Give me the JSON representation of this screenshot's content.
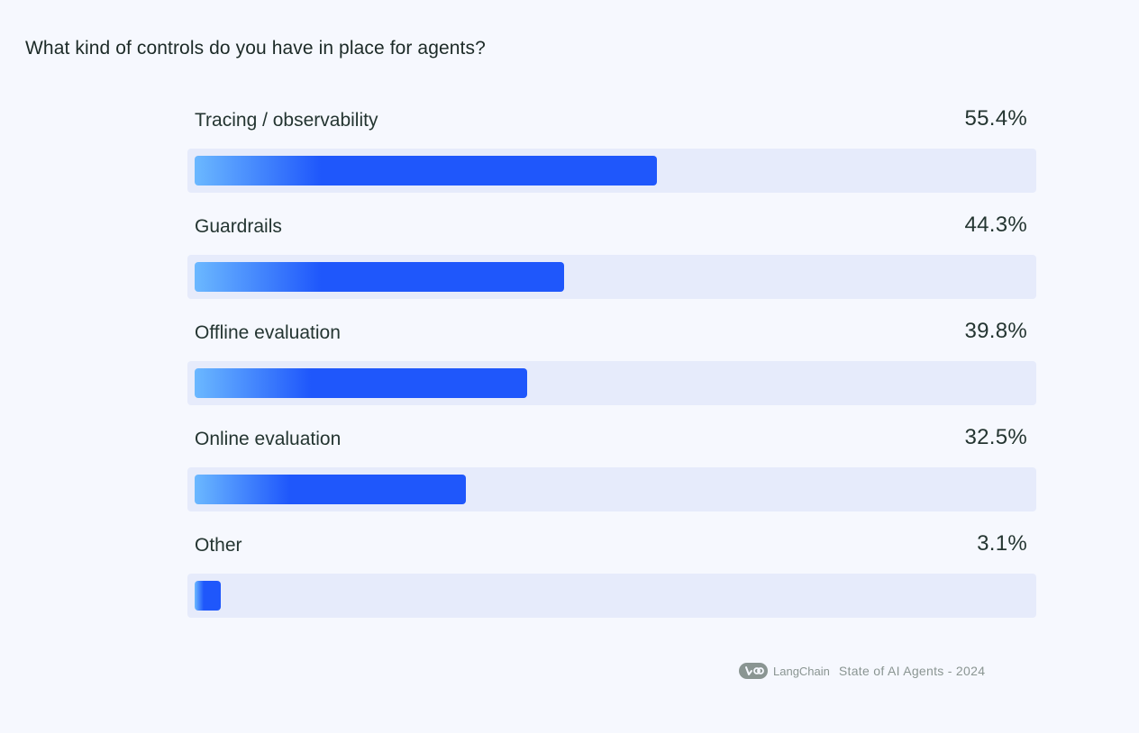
{
  "chart_data": {
    "type": "bar",
    "orientation": "horizontal",
    "title": "What kind of controls do you have in place for agents?",
    "categories": [
      "Tracing / observability",
      "Guardrails",
      "Offline evaluation",
      "Online evaluation",
      "Other"
    ],
    "values": [
      55.4,
      44.3,
      39.8,
      32.5,
      3.1
    ],
    "value_labels": [
      "55.4%",
      "44.3%",
      "39.8%",
      "32.5%",
      "3.1%"
    ],
    "xlim": [
      0,
      100
    ],
    "grid": false,
    "bar_color_start": "#6bb8ff",
    "bar_color_end": "#1f57fb",
    "track_color": "#e6ebfb"
  },
  "footer": {
    "logo": "langchain-logo-icon",
    "brand": "LangChain",
    "text": "State of AI Agents - 2024"
  }
}
